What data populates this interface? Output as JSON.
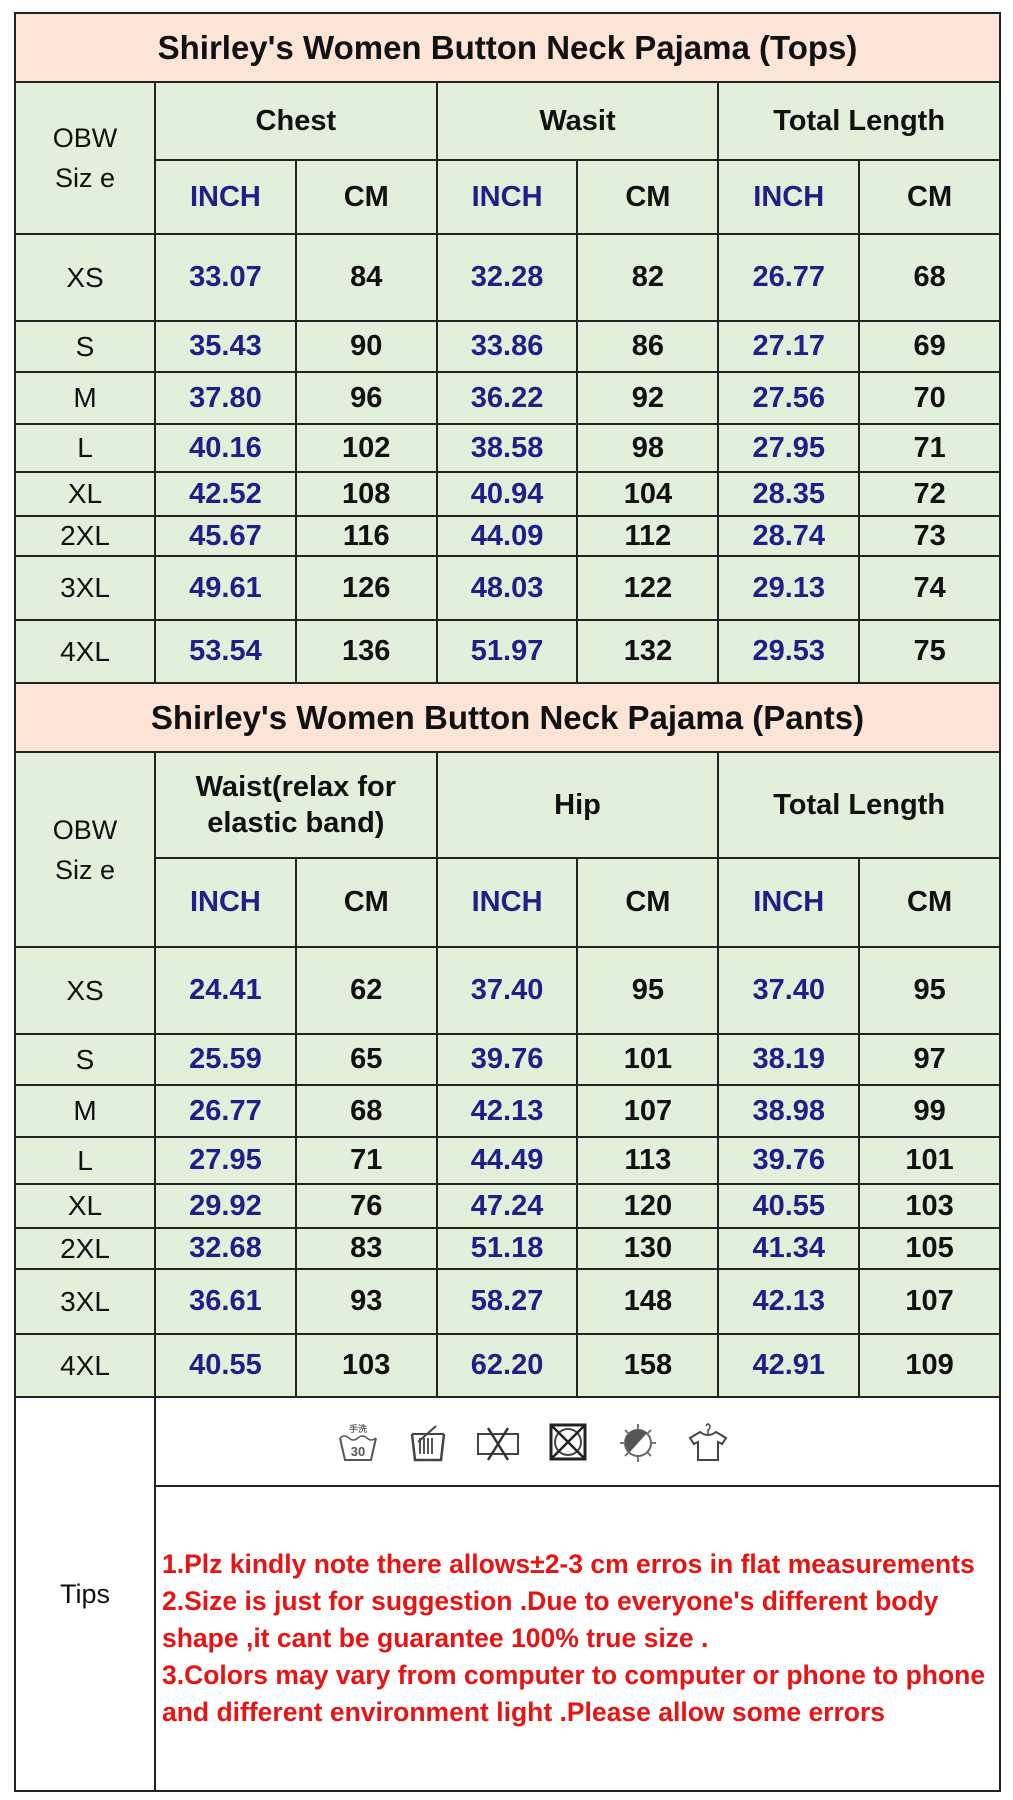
{
  "tops": {
    "title": "Shirley's Women Button Neck Pajama (Tops)",
    "size_label": [
      "OBW",
      "Siz e"
    ],
    "groups": [
      "Chest",
      "Wasit",
      "Total Length"
    ],
    "units": [
      "INCH",
      "CM",
      "INCH",
      "CM",
      "INCH",
      "CM"
    ],
    "rows": [
      [
        "XS",
        "33.07",
        "84",
        "32.28",
        "82",
        "26.77",
        "68"
      ],
      [
        "S",
        "35.43",
        "90",
        "33.86",
        "86",
        "27.17",
        "69"
      ],
      [
        "M",
        "37.80",
        "96",
        "36.22",
        "92",
        "27.56",
        "70"
      ],
      [
        "L",
        "40.16",
        "102",
        "38.58",
        "98",
        "27.95",
        "71"
      ],
      [
        "XL",
        "42.52",
        "108",
        "40.94",
        "104",
        "28.35",
        "72"
      ],
      [
        "2XL",
        "45.67",
        "116",
        "44.09",
        "112",
        "28.74",
        "73"
      ],
      [
        "3XL",
        "49.61",
        "126",
        "48.03",
        "122",
        "29.13",
        "74"
      ],
      [
        "4XL",
        "53.54",
        "136",
        "51.97",
        "132",
        "29.53",
        "75"
      ]
    ]
  },
  "pants": {
    "title": "Shirley's Women Button Neck Pajama (Pants)",
    "size_label": [
      "OBW",
      "Siz e"
    ],
    "groups": [
      "Waist(relax for elastic band)",
      "Hip",
      "Total Length"
    ],
    "units": [
      "INCH",
      "CM",
      "INCH",
      "CM",
      "INCH",
      "CM"
    ],
    "rows": [
      [
        "XS",
        "24.41",
        "62",
        "37.40",
        "95",
        "37.40",
        "95"
      ],
      [
        "S",
        "25.59",
        "65",
        "39.76",
        "101",
        "38.19",
        "97"
      ],
      [
        "M",
        "26.77",
        "68",
        "42.13",
        "107",
        "38.98",
        "99"
      ],
      [
        "L",
        "27.95",
        "71",
        "44.49",
        "113",
        "39.76",
        "101"
      ],
      [
        "XL",
        "29.92",
        "76",
        "47.24",
        "120",
        "40.55",
        "103"
      ],
      [
        "2XL",
        "32.68",
        "83",
        "51.18",
        "130",
        "41.34",
        "105"
      ],
      [
        "3XL",
        "36.61",
        "93",
        "58.27",
        "148",
        "42.13",
        "107"
      ],
      [
        "4XL",
        "40.55",
        "103",
        "62.20",
        "158",
        "42.91",
        "109"
      ]
    ]
  },
  "tips": {
    "label": "Tips",
    "care_icons": [
      "hand-wash-30-icon",
      "no-bleach-wash-icon",
      "do-not-wring-icon",
      "do-not-tumble-dry-icon",
      "do-not-iron-icon",
      "hang-dry-icon"
    ],
    "hand_wash_temp": "30",
    "notes": [
      "1.Plz kindly note there allows±2-3 cm erros in flat measurements",
      "2.Size is just for suggestion .Due to everyone's different body shape ,it cant be guarantee 100% true size .",
      "3.Colors may  vary from computer to computer or phone to phone and different environment light .Please allow some errors"
    ]
  },
  "colors": {
    "title_bg": "#fce4d6",
    "cell_bg": "#e2efda",
    "inch_text": "#1f1f8a",
    "tips_text": "#e81414"
  }
}
